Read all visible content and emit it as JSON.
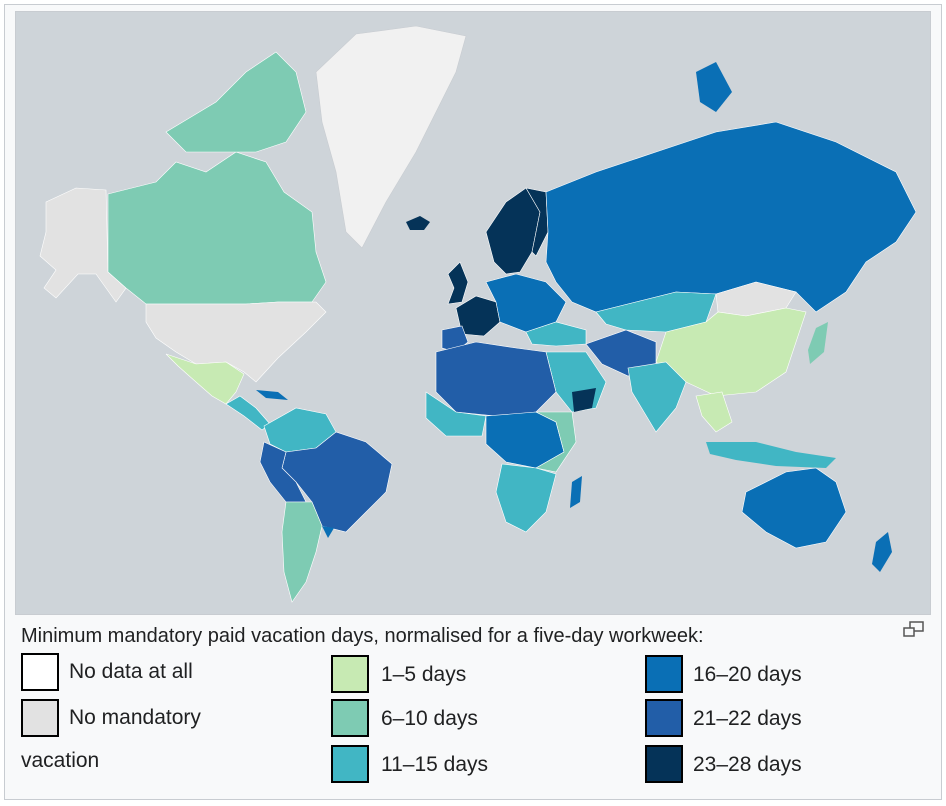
{
  "caption": "Minimum mandatory paid vacation days, normalised for a five-day workweek:",
  "legend": [
    {
      "label": "No data at all",
      "color": "#ffffff"
    },
    {
      "label": "No mandatory",
      "label2": "vacation",
      "color": "#e2e2e2"
    },
    {
      "label": "1–5 days",
      "color": "#c7eab3"
    },
    {
      "label": "6–10 days",
      "color": "#7ecbb3"
    },
    {
      "label": "11–15 days",
      "color": "#41b6c4"
    },
    {
      "label": "16–20 days",
      "color": "#0a6fb5"
    },
    {
      "label": "21–22 days",
      "color": "#225ea8"
    },
    {
      "label": "23–28 days",
      "color": "#053358"
    }
  ],
  "colors": {
    "ocean": "#ced4d9",
    "border": "#c8ccd1",
    "panel": "#f8f9fa"
  },
  "icons": {
    "enlarge": "enlarge-icon"
  }
}
